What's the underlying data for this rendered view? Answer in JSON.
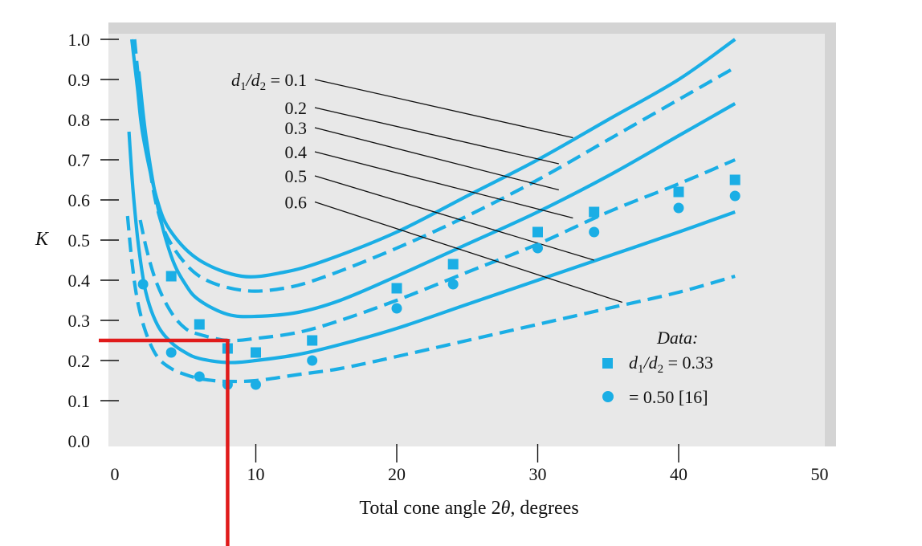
{
  "chart_data": {
    "type": "line",
    "title": "",
    "xlabel": "Total cone angle 2θ, degrees",
    "ylabel": "K",
    "xlim": [
      0,
      50
    ],
    "ylim": [
      0,
      1.0
    ],
    "x_ticks": [
      0,
      10,
      20,
      30,
      40,
      50
    ],
    "y_ticks": [
      "0.0",
      "0.1",
      "0.2",
      "0.3",
      "0.4",
      "0.5",
      "0.6",
      "0.7",
      "0.8",
      "0.9",
      "1.0"
    ],
    "x_ticks_with_marks": [
      10,
      20,
      30,
      40
    ],
    "colors": {
      "curve": "#1aaee5",
      "leader": "#111111",
      "highlight": "#e01b1b",
      "plot_bg": "#e8e8e8",
      "frame": "#d4d4d4"
    },
    "series": [
      {
        "name": "d1/d2 = 0.1",
        "dash": false,
        "x": [
          1.2,
          1.6,
          2.0,
          3,
          4,
          6,
          9,
          12,
          15,
          20,
          25,
          30,
          35,
          40,
          44
        ],
        "y": [
          1.0,
          0.88,
          0.76,
          0.6,
          0.52,
          0.45,
          0.41,
          0.42,
          0.45,
          0.52,
          0.61,
          0.7,
          0.8,
          0.9,
          1.0
        ]
      },
      {
        "name": "0.2",
        "dash": true,
        "x": [
          1.4,
          1.8,
          2.3,
          3,
          4,
          6,
          9,
          12,
          15,
          20,
          25,
          30,
          35,
          40,
          44
        ],
        "y": [
          1.0,
          0.86,
          0.72,
          0.58,
          0.49,
          0.41,
          0.375,
          0.38,
          0.41,
          0.48,
          0.56,
          0.65,
          0.75,
          0.85,
          0.93
        ]
      },
      {
        "name": "0.3",
        "dash": false,
        "x": [
          1.7,
          2.2,
          3,
          4,
          5,
          6,
          8,
          10,
          13,
          16,
          20,
          25,
          30,
          35,
          40,
          44
        ],
        "y": [
          0.92,
          0.76,
          0.59,
          0.46,
          0.39,
          0.35,
          0.315,
          0.31,
          0.32,
          0.35,
          0.41,
          0.49,
          0.57,
          0.66,
          0.76,
          0.84
        ]
      },
      {
        "name": "0.4",
        "dash": true,
        "x": [
          1.8,
          2.3,
          3,
          4,
          5,
          6,
          8,
          10,
          13,
          16,
          20,
          25,
          30,
          35,
          40,
          44
        ],
        "y": [
          0.55,
          0.47,
          0.39,
          0.32,
          0.28,
          0.265,
          0.25,
          0.255,
          0.27,
          0.3,
          0.35,
          0.42,
          0.49,
          0.57,
          0.64,
          0.7
        ]
      },
      {
        "name": "0.5",
        "dash": false,
        "x": [
          1.0,
          1.3,
          1.7,
          2.2,
          3,
          4,
          5,
          6,
          8,
          10,
          13,
          16,
          20,
          25,
          30,
          35,
          40,
          44
        ],
        "y": [
          0.77,
          0.62,
          0.48,
          0.37,
          0.29,
          0.245,
          0.22,
          0.205,
          0.195,
          0.2,
          0.215,
          0.24,
          0.28,
          0.34,
          0.4,
          0.46,
          0.52,
          0.57
        ]
      },
      {
        "name": "0.6",
        "dash": true,
        "x": [
          0.9,
          1.2,
          1.6,
          2.2,
          3,
          4,
          5,
          6,
          7,
          8,
          10,
          13,
          16,
          20,
          25,
          30,
          35,
          40,
          44
        ],
        "y": [
          0.56,
          0.45,
          0.35,
          0.27,
          0.21,
          0.18,
          0.165,
          0.155,
          0.15,
          0.148,
          0.15,
          0.165,
          0.18,
          0.21,
          0.25,
          0.29,
          0.33,
          0.37,
          0.41
        ]
      }
    ],
    "data_points": [
      {
        "name": "d1/d2 = 0.33",
        "marker": "square",
        "x": [
          4,
          6,
          8,
          10,
          14,
          20,
          24,
          30,
          34,
          40,
          44
        ],
        "y": [
          0.41,
          0.29,
          0.23,
          0.22,
          0.25,
          0.38,
          0.44,
          0.52,
          0.57,
          0.62,
          0.65
        ]
      },
      {
        "name": "= 0.50 [16]",
        "marker": "circle",
        "x": [
          2,
          4,
          6,
          8,
          10,
          14,
          20,
          24,
          30,
          34,
          40,
          44
        ],
        "y": [
          0.39,
          0.22,
          0.16,
          0.14,
          0.14,
          0.2,
          0.33,
          0.39,
          0.48,
          0.52,
          0.58,
          0.61
        ]
      }
    ],
    "curve_labels": [
      {
        "text_prefix": "d",
        "sub1": "1",
        "mid": "/d",
        "sub2": "2",
        "text_suffix": " = 0.1",
        "y": 0.9
      },
      {
        "text": "0.2",
        "y": 0.83
      },
      {
        "text": "0.3",
        "y": 0.78
      },
      {
        "text": "0.4",
        "y": 0.72
      },
      {
        "text": "0.5",
        "y": 0.66
      },
      {
        "text": "0.6",
        "y": 0.595
      }
    ],
    "leader_targets": [
      {
        "x": 32.5,
        "y": 0.755
      },
      {
        "x": 31.5,
        "y": 0.69
      },
      {
        "x": 31.5,
        "y": 0.625
      },
      {
        "x": 32.5,
        "y": 0.555
      },
      {
        "x": 34.0,
        "y": 0.45
      },
      {
        "x": 36.0,
        "y": 0.345
      }
    ],
    "highlight": {
      "x": 8,
      "y": 0.25
    },
    "legend": {
      "title": "Data:",
      "entry1_prefix": "d",
      "entry1_sub1": "1",
      "entry1_mid": "/d",
      "entry1_sub2": "2",
      "entry1_suffix": " = 0.33",
      "entry2": "= 0.50 [16]"
    }
  }
}
